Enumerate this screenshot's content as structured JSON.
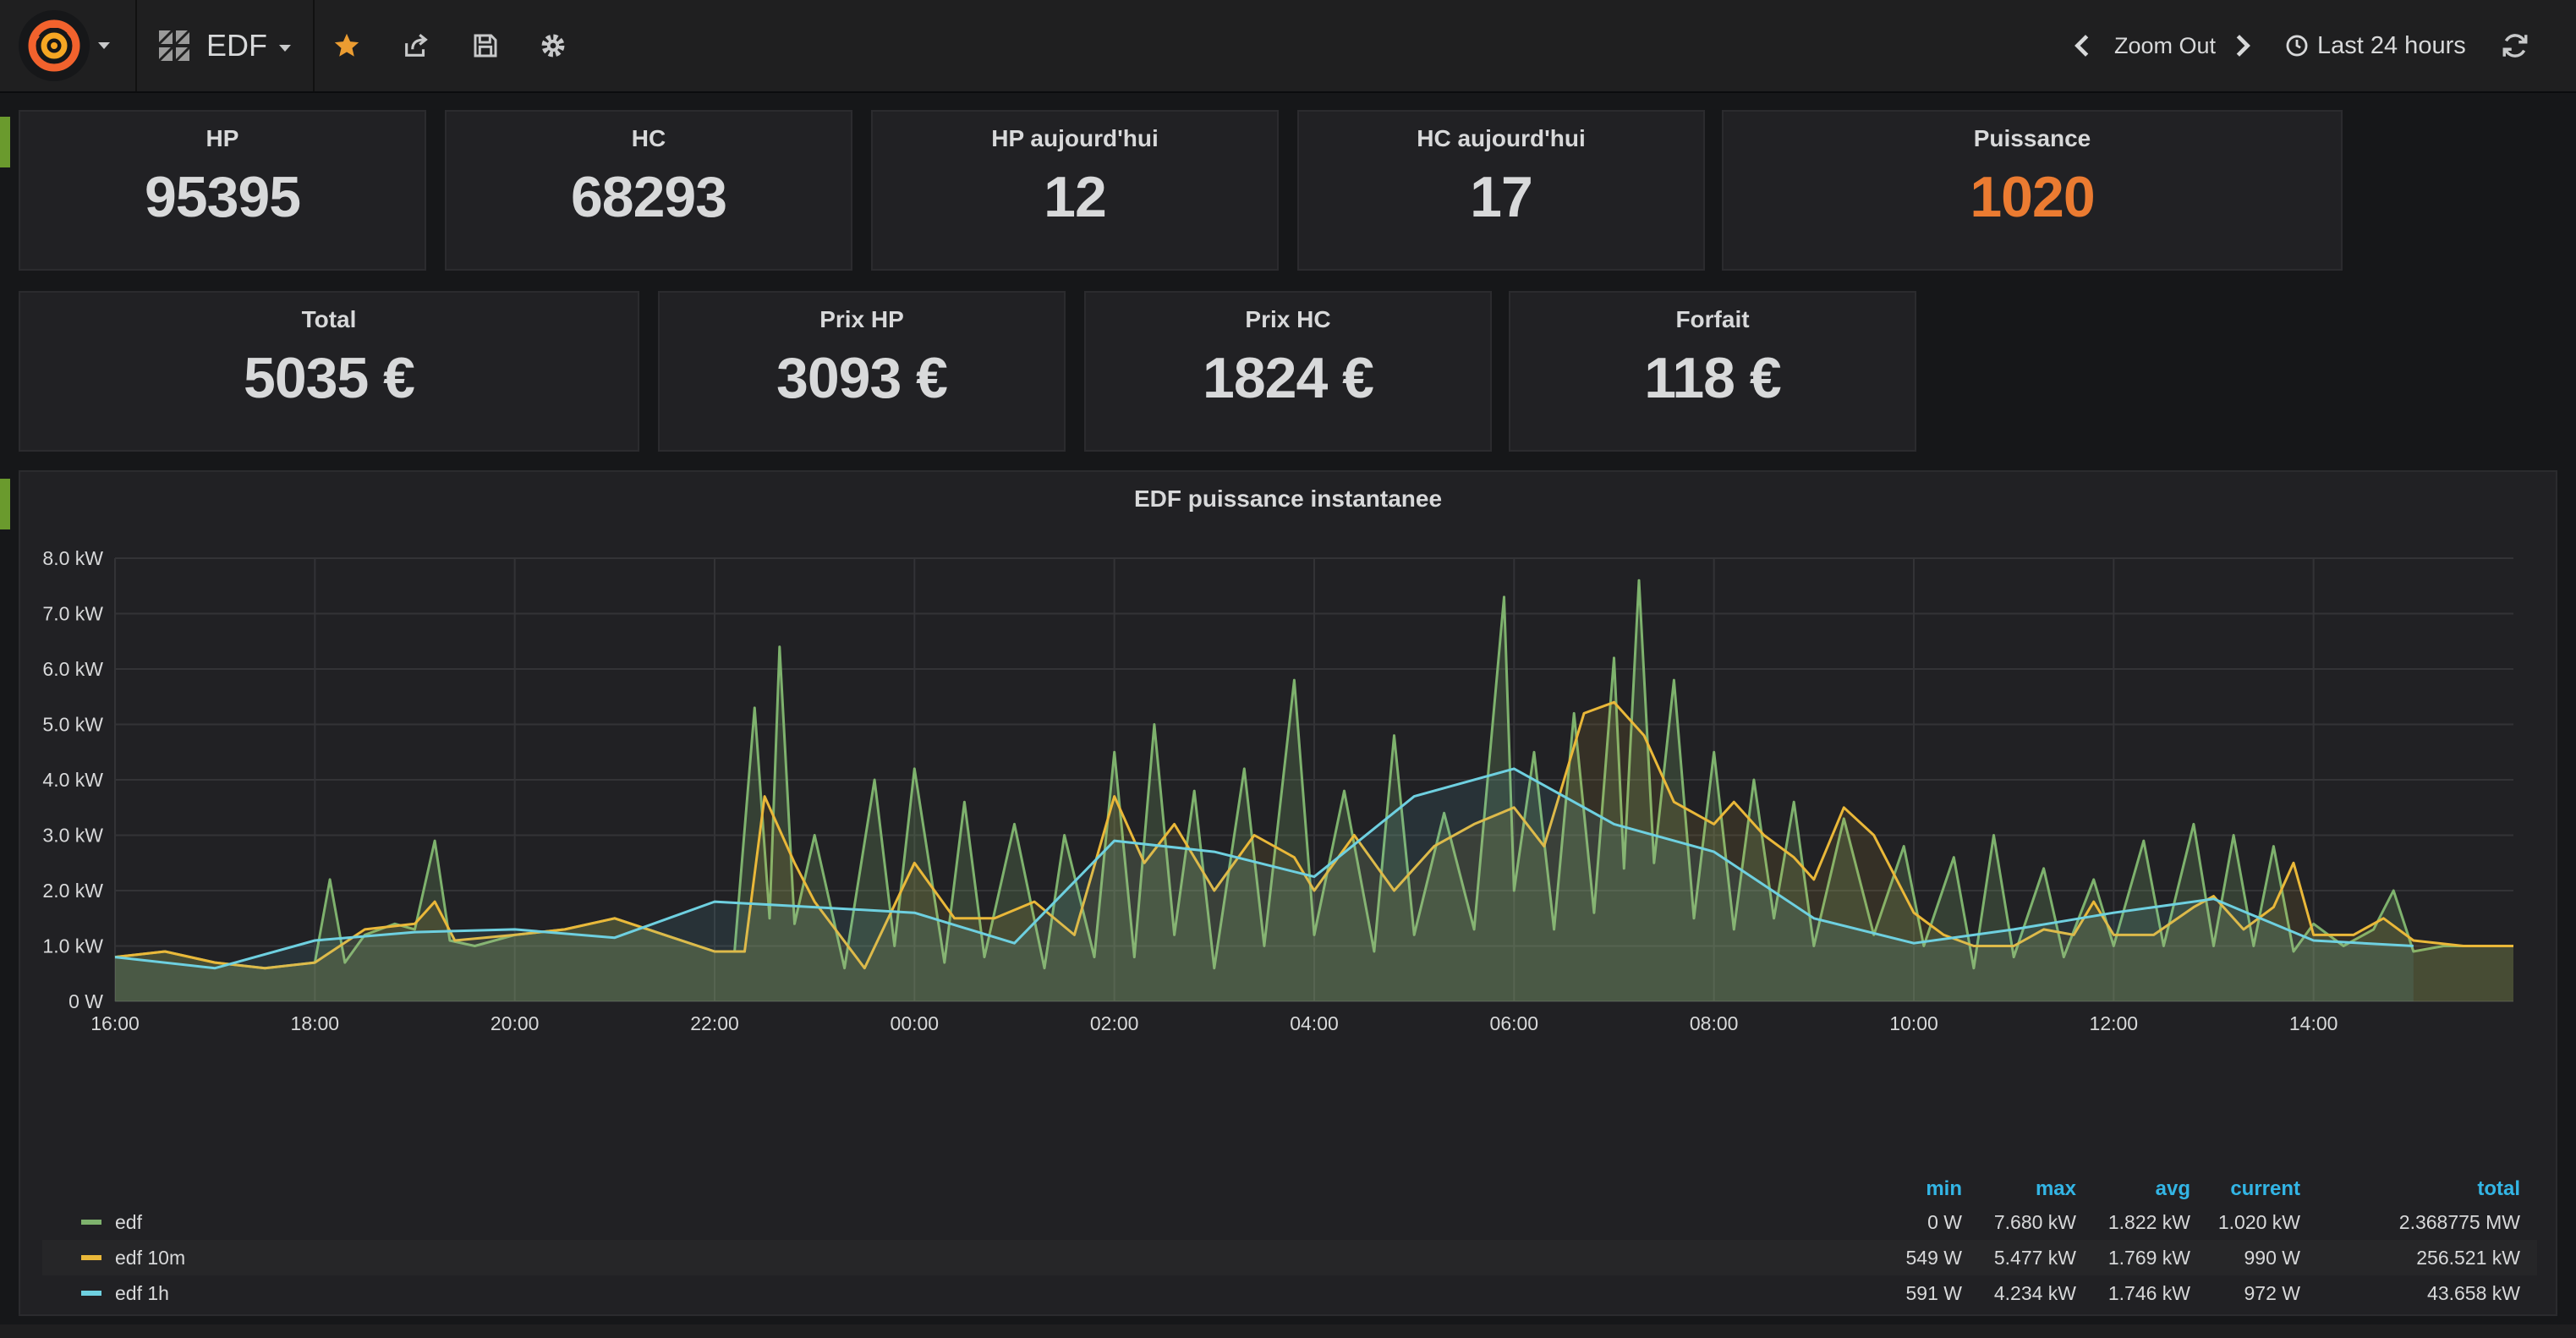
{
  "nav": {
    "dashboard_title": "EDF",
    "zoom_out_label": "Zoom Out",
    "time_range_label": "Last 24 hours",
    "icons": [
      "grafana-logo-icon",
      "dashboard-grid-icon",
      "star-icon",
      "share-icon",
      "save-icon",
      "settings-icon",
      "chevron-left-icon",
      "chevron-right-icon",
      "clock-icon",
      "refresh-icon"
    ]
  },
  "stats_row1": [
    {
      "title": "HP",
      "value": "95395"
    },
    {
      "title": "HC",
      "value": "68293"
    },
    {
      "title": "HP aujourd'hui",
      "value": "12"
    },
    {
      "title": "HC aujourd'hui",
      "value": "17"
    },
    {
      "title": "Puissance",
      "value": "1020"
    }
  ],
  "stats_row2": [
    {
      "title": "Total",
      "value": "5035 €"
    },
    {
      "title": "Prix HP",
      "value": "3093 €"
    },
    {
      "title": "Prix HC",
      "value": "1824 €"
    },
    {
      "title": "Forfait",
      "value": "118 €"
    }
  ],
  "colors": {
    "accent": "#eb7b31",
    "edf": "#7eb26d",
    "edf10m": "#eab839",
    "edf1h": "#6ed0e0",
    "legend_head": "#33b5e5",
    "row_marker": "#6a9a2d"
  },
  "chart_data": {
    "type": "line",
    "title": "EDF puissance instantanee",
    "ylabel": "kW",
    "ylim": [
      0,
      8
    ],
    "yticks": [
      "0 W",
      "1.0 kW",
      "2.0 kW",
      "3.0 kW",
      "4.0 kW",
      "5.0 kW",
      "6.0 kW",
      "7.0 kW",
      "8.0 kW"
    ],
    "xlim_hours": [
      16,
      40
    ],
    "xticks": [
      "16:00",
      "18:00",
      "20:00",
      "22:00",
      "00:00",
      "02:00",
      "04:00",
      "06:00",
      "08:00",
      "10:00",
      "12:00",
      "14:00"
    ],
    "series": [
      {
        "name": "edf",
        "color": "#7eb26d",
        "points": [
          [
            16,
            0.8
          ],
          [
            16.5,
            0.9
          ],
          [
            17,
            0.7
          ],
          [
            17.5,
            0.6
          ],
          [
            18,
            0.7
          ],
          [
            18.15,
            2.2
          ],
          [
            18.3,
            0.7
          ],
          [
            18.5,
            1.2
          ],
          [
            18.8,
            1.4
          ],
          [
            19,
            1.3
          ],
          [
            19.2,
            2.9
          ],
          [
            19.35,
            1.1
          ],
          [
            19.6,
            1.0
          ],
          [
            20,
            1.2
          ],
          [
            20.5,
            1.3
          ],
          [
            21,
            1.5
          ],
          [
            21.5,
            1.2
          ],
          [
            22,
            0.9
          ],
          [
            22.2,
            0.9
          ],
          [
            22.4,
            5.3
          ],
          [
            22.55,
            1.5
          ],
          [
            22.65,
            6.4
          ],
          [
            22.8,
            1.4
          ],
          [
            23,
            3.0
          ],
          [
            23.3,
            0.6
          ],
          [
            23.6,
            4.0
          ],
          [
            23.8,
            1.0
          ],
          [
            24,
            4.2
          ],
          [
            24.3,
            0.7
          ],
          [
            24.5,
            3.6
          ],
          [
            24.7,
            0.8
          ],
          [
            25,
            3.2
          ],
          [
            25.3,
            0.6
          ],
          [
            25.5,
            3.0
          ],
          [
            25.8,
            0.8
          ],
          [
            26,
            4.5
          ],
          [
            26.2,
            0.8
          ],
          [
            26.4,
            5.0
          ],
          [
            26.6,
            1.2
          ],
          [
            26.8,
            3.8
          ],
          [
            27,
            0.6
          ],
          [
            27.3,
            4.2
          ],
          [
            27.5,
            1.0
          ],
          [
            27.8,
            5.8
          ],
          [
            28,
            1.2
          ],
          [
            28.3,
            3.8
          ],
          [
            28.6,
            0.9
          ],
          [
            28.8,
            4.8
          ],
          [
            29,
            1.2
          ],
          [
            29.3,
            3.4
          ],
          [
            29.6,
            1.3
          ],
          [
            29.9,
            7.3
          ],
          [
            30,
            2.0
          ],
          [
            30.2,
            4.5
          ],
          [
            30.4,
            1.3
          ],
          [
            30.6,
            5.2
          ],
          [
            30.8,
            1.6
          ],
          [
            31,
            6.2
          ],
          [
            31.1,
            2.4
          ],
          [
            31.25,
            7.6
          ],
          [
            31.4,
            2.5
          ],
          [
            31.6,
            5.8
          ],
          [
            31.8,
            1.5
          ],
          [
            32,
            4.5
          ],
          [
            32.2,
            1.3
          ],
          [
            32.4,
            4.0
          ],
          [
            32.6,
            1.5
          ],
          [
            32.8,
            3.6
          ],
          [
            33,
            1.0
          ],
          [
            33.3,
            3.3
          ],
          [
            33.6,
            1.2
          ],
          [
            33.9,
            2.8
          ],
          [
            34.1,
            1.0
          ],
          [
            34.4,
            2.6
          ],
          [
            34.6,
            0.6
          ],
          [
            34.8,
            3.0
          ],
          [
            35,
            0.8
          ],
          [
            35.3,
            2.4
          ],
          [
            35.5,
            0.8
          ],
          [
            35.8,
            2.2
          ],
          [
            36,
            1.0
          ],
          [
            36.3,
            2.9
          ],
          [
            36.5,
            1.0
          ],
          [
            36.8,
            3.2
          ],
          [
            37,
            1.0
          ],
          [
            37.2,
            3.0
          ],
          [
            37.4,
            1.0
          ],
          [
            37.6,
            2.8
          ],
          [
            37.8,
            0.9
          ],
          [
            38,
            1.4
          ],
          [
            38.3,
            1.0
          ],
          [
            38.6,
            1.3
          ],
          [
            38.8,
            2.0
          ],
          [
            39,
            0.9
          ],
          [
            39.3,
            1.0
          ],
          [
            39.6,
            1.0
          ],
          [
            40,
            1.0
          ]
        ]
      },
      {
        "name": "edf 10m",
        "color": "#eab839",
        "points": [
          [
            16,
            0.8
          ],
          [
            16.5,
            0.9
          ],
          [
            17,
            0.7
          ],
          [
            17.5,
            0.6
          ],
          [
            18,
            0.7
          ],
          [
            18.5,
            1.3
          ],
          [
            19,
            1.4
          ],
          [
            19.2,
            1.8
          ],
          [
            19.4,
            1.1
          ],
          [
            20,
            1.2
          ],
          [
            20.5,
            1.3
          ],
          [
            21,
            1.5
          ],
          [
            21.5,
            1.2
          ],
          [
            22,
            0.9
          ],
          [
            22.3,
            0.9
          ],
          [
            22.5,
            3.7
          ],
          [
            22.8,
            2.5
          ],
          [
            23,
            1.8
          ],
          [
            23.5,
            0.6
          ],
          [
            24,
            2.5
          ],
          [
            24.4,
            1.5
          ],
          [
            24.8,
            1.5
          ],
          [
            25.2,
            1.8
          ],
          [
            25.6,
            1.2
          ],
          [
            26,
            3.7
          ],
          [
            26.3,
            2.5
          ],
          [
            26.6,
            3.2
          ],
          [
            27,
            2.0
          ],
          [
            27.4,
            3.0
          ],
          [
            27.8,
            2.6
          ],
          [
            28,
            2.0
          ],
          [
            28.4,
            3.0
          ],
          [
            28.8,
            2.0
          ],
          [
            29.2,
            2.8
          ],
          [
            29.6,
            3.2
          ],
          [
            30,
            3.5
          ],
          [
            30.3,
            2.8
          ],
          [
            30.5,
            4.0
          ],
          [
            30.7,
            5.2
          ],
          [
            31,
            5.4
          ],
          [
            31.3,
            4.8
          ],
          [
            31.6,
            3.6
          ],
          [
            32,
            3.2
          ],
          [
            32.2,
            3.6
          ],
          [
            32.5,
            3.0
          ],
          [
            32.8,
            2.6
          ],
          [
            33,
            2.2
          ],
          [
            33.3,
            3.5
          ],
          [
            33.6,
            3.0
          ],
          [
            34,
            1.6
          ],
          [
            34.3,
            1.2
          ],
          [
            34.6,
            1.0
          ],
          [
            35,
            1.0
          ],
          [
            35.3,
            1.3
          ],
          [
            35.6,
            1.2
          ],
          [
            35.8,
            1.8
          ],
          [
            36,
            1.2
          ],
          [
            36.4,
            1.2
          ],
          [
            36.8,
            1.7
          ],
          [
            37,
            1.9
          ],
          [
            37.3,
            1.3
          ],
          [
            37.6,
            1.7
          ],
          [
            37.8,
            2.5
          ],
          [
            38,
            1.2
          ],
          [
            38.4,
            1.2
          ],
          [
            38.7,
            1.5
          ],
          [
            39,
            1.1
          ],
          [
            39.5,
            1.0
          ],
          [
            40,
            1.0
          ]
        ]
      },
      {
        "name": "edf 1h",
        "color": "#6ed0e0",
        "points": [
          [
            16,
            0.8
          ],
          [
            17,
            0.6
          ],
          [
            18,
            1.1
          ],
          [
            19,
            1.25
          ],
          [
            20,
            1.3
          ],
          [
            21,
            1.15
          ],
          [
            22,
            1.8
          ],
          [
            23,
            1.7
          ],
          [
            24,
            1.6
          ],
          [
            25,
            1.05
          ],
          [
            26,
            2.9
          ],
          [
            27,
            2.7
          ],
          [
            28,
            2.25
          ],
          [
            29,
            3.7
          ],
          [
            30,
            4.2
          ],
          [
            31,
            3.2
          ],
          [
            32,
            2.7
          ],
          [
            33,
            1.5
          ],
          [
            34,
            1.05
          ],
          [
            35,
            1.3
          ],
          [
            36,
            1.6
          ],
          [
            37,
            1.85
          ],
          [
            38,
            1.1
          ],
          [
            39,
            1.0
          ]
        ]
      }
    ],
    "legend": {
      "columns": [
        "min",
        "max",
        "avg",
        "current",
        "total"
      ],
      "rows": [
        {
          "name": "edf",
          "min": "0 W",
          "max": "7.680 kW",
          "avg": "1.822 kW",
          "current": "1.020 kW",
          "total": "2.368775 MW"
        },
        {
          "name": "edf 10m",
          "min": "549 W",
          "max": "5.477 kW",
          "avg": "1.769 kW",
          "current": "990 W",
          "total": "256.521 kW"
        },
        {
          "name": "edf 1h",
          "min": "591 W",
          "max": "4.234 kW",
          "avg": "1.746 kW",
          "current": "972 W",
          "total": "43.658 kW"
        }
      ]
    }
  }
}
